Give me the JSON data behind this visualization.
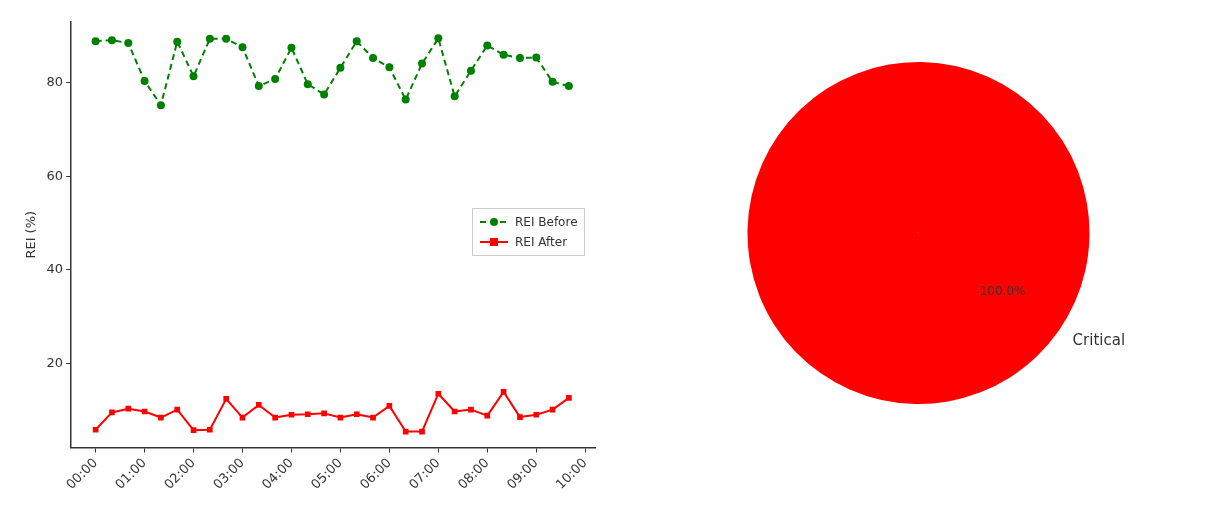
{
  "chart_data": [
    {
      "type": "line",
      "ylabel": "REI (%)",
      "x": [
        0,
        0.333,
        0.667,
        1,
        1.333,
        1.667,
        2,
        2.333,
        2.667,
        3,
        3.333,
        3.667,
        4,
        4.333,
        4.667,
        5,
        5.333,
        5.667,
        6,
        6.333,
        6.667,
        7,
        7.333,
        7.667,
        8,
        8.333,
        8.667,
        9,
        9.333,
        9.667
      ],
      "series": [
        {
          "name": "REI Before",
          "color": "#008000",
          "marker": "circle",
          "line_style": "dashed",
          "values": [
            88.9,
            89.1,
            88.5,
            80.4,
            75.2,
            88.8,
            81.4,
            89.4,
            89.4,
            87.6,
            79.3,
            80.8,
            87.5,
            79.7,
            77.5,
            83.2,
            88.9,
            85.3,
            83.3,
            76.4,
            84.1,
            89.5,
            77.1,
            82.6,
            88.0,
            86.0,
            85.3,
            85.4,
            80.2,
            79.3
          ]
        },
        {
          "name": "REI After",
          "color": "#ff0000",
          "marker": "square",
          "line_style": "solid",
          "values": [
            5.8,
            9.5,
            10.3,
            9.7,
            8.4,
            10.1,
            5.7,
            5.8,
            12.4,
            8.4,
            11.1,
            8.4,
            9.0,
            9.1,
            9.3,
            8.4,
            9.1,
            8.4,
            10.9,
            5.4,
            5.4,
            13.5,
            9.7,
            10.1,
            8.8,
            13.9,
            8.5,
            9.0,
            10.1,
            12.6
          ]
        }
      ],
      "xlim": [
        -0.5,
        10.2
      ],
      "xticks": [
        {
          "value": 0,
          "label": "00:00"
        },
        {
          "value": 1,
          "label": "01:00"
        },
        {
          "value": 2,
          "label": "02:00"
        },
        {
          "value": 3,
          "label": "03:00"
        },
        {
          "value": 4,
          "label": "04:00"
        },
        {
          "value": 5,
          "label": "05:00"
        },
        {
          "value": 6,
          "label": "06:00"
        },
        {
          "value": 7,
          "label": "07:00"
        },
        {
          "value": 8,
          "label": "08:00"
        },
        {
          "value": 9,
          "label": "09:00"
        },
        {
          "value": 10,
          "label": "10:00"
        }
      ],
      "ylim": [
        2,
        93
      ],
      "yticks": [
        20,
        40,
        60,
        80
      ],
      "grid": false,
      "legend": "center right"
    },
    {
      "type": "pie",
      "categories": [
        "Critical"
      ],
      "values": [
        100
      ],
      "colors": [
        "#ff0000"
      ],
      "value_labels": [
        "100.0%"
      ]
    }
  ]
}
